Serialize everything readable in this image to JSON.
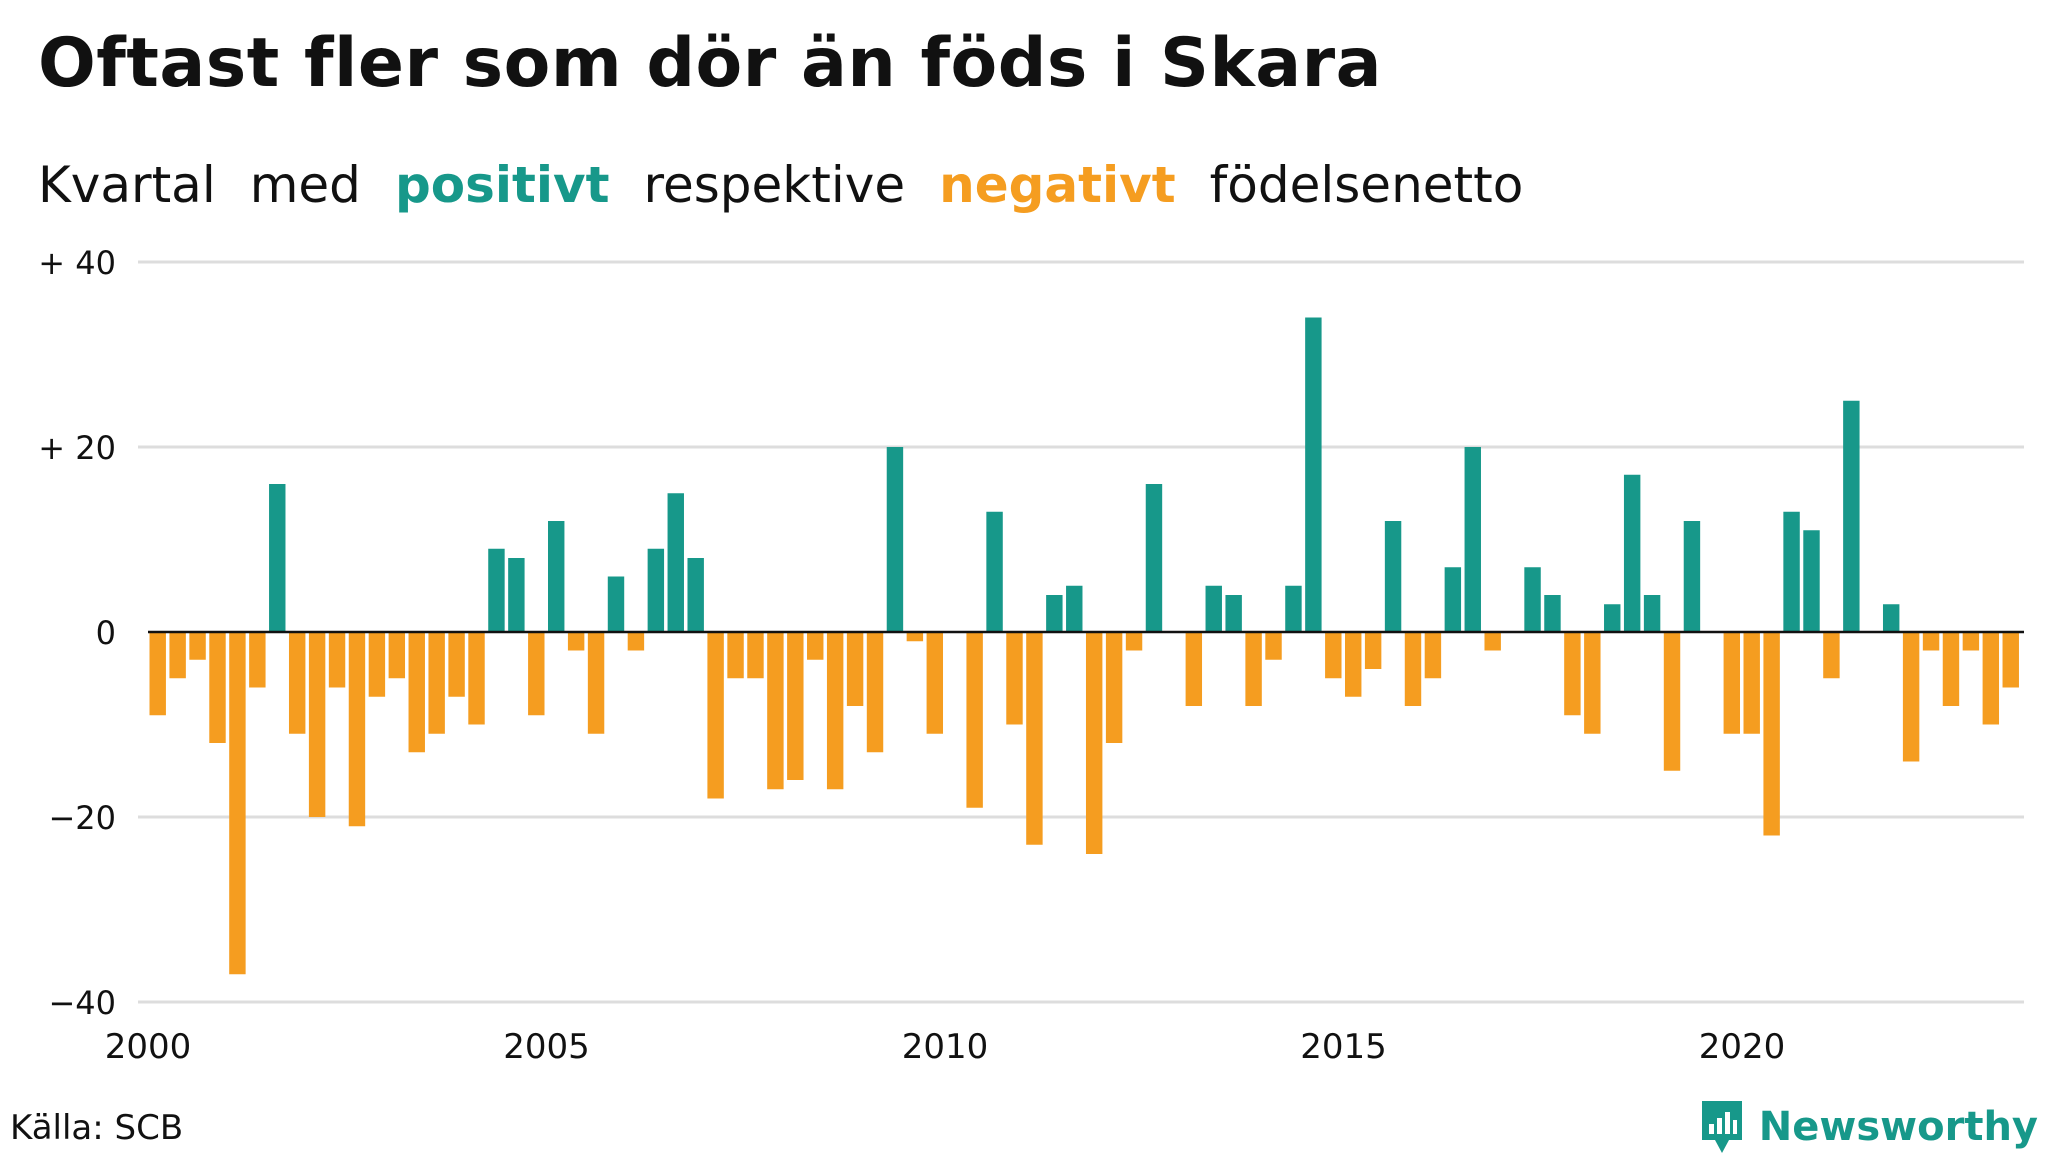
{
  "title": "Oftast fler som dör än föds i Skara",
  "subtitle": {
    "part1": "Kvartal",
    "part2": "med",
    "positive": "positivt",
    "part3": "respektive",
    "negative": "negativt",
    "part4": "födelsenetto"
  },
  "source": "Källa: SCB",
  "brand": {
    "name": "Newsworthy",
    "icon": "newsworthy-logo-icon"
  },
  "colors": {
    "positive": "#17988a",
    "negative": "#f59d20",
    "grid": "#dddddd",
    "text": "#111111"
  },
  "chart_data": {
    "type": "bar",
    "title": "Oftast fler som dör än föds i Skara",
    "subtitle": "Kvartal med positivt respektive negativt födelsenetto",
    "xlabel": "",
    "ylabel": "",
    "x_start": 2000,
    "x_end": 2024,
    "first_period": "2000 Q1",
    "ylim": [
      -40,
      40
    ],
    "yticks": [
      {
        "value": 40,
        "label": "+ 40"
      },
      {
        "value": 20,
        "label": "+ 20"
      },
      {
        "value": 0,
        "label": "0"
      },
      {
        "value": -20,
        "label": "−20"
      },
      {
        "value": -40,
        "label": "−40"
      }
    ],
    "xticks": [
      {
        "value": 2000,
        "label": "2000"
      },
      {
        "value": 2005,
        "label": "2005"
      },
      {
        "value": 2010,
        "label": "2010"
      },
      {
        "value": 2015,
        "label": "2015"
      },
      {
        "value": 2020,
        "label": "2020"
      }
    ],
    "grid": true,
    "legend": "none",
    "values": [
      -9,
      -5,
      -3,
      -12,
      -37,
      -6,
      16,
      -11,
      -20,
      -6,
      -21,
      -7,
      -5,
      -13,
      -11,
      -7,
      -10,
      9,
      8,
      -9,
      12,
      -2,
      -11,
      6,
      -2,
      9,
      15,
      8,
      -18,
      -5,
      -5,
      -17,
      -16,
      -3,
      -17,
      -8,
      -13,
      20,
      -1,
      -11,
      0,
      -19,
      13,
      -10,
      -23,
      4,
      5,
      -24,
      -12,
      -2,
      16,
      0,
      -8,
      5,
      4,
      -8,
      -3,
      5,
      34,
      -5,
      -7,
      -4,
      12,
      -8,
      -5,
      7,
      20,
      -2,
      0,
      7,
      4,
      -9,
      -11,
      3,
      17,
      4,
      -15,
      12,
      0,
      -11,
      -11,
      -22,
      13,
      11,
      -5,
      25,
      0,
      3,
      -14,
      -2,
      -8,
      -2,
      -10,
      -6
    ]
  }
}
